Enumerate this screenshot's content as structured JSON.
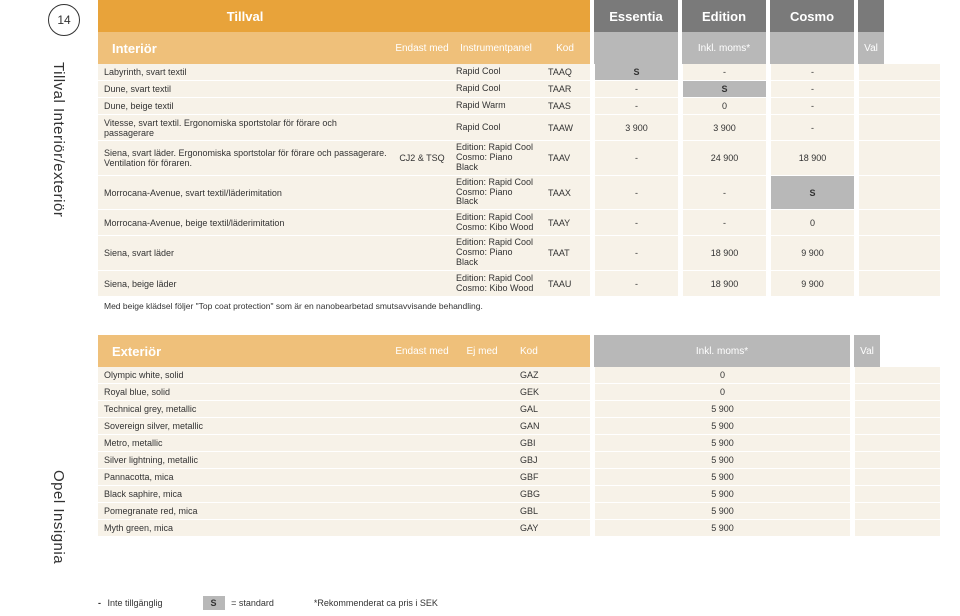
{
  "page_number": "14",
  "sidebar_top": "Tillval Interiör/exteriör",
  "sidebar_bottom": "Opel Insignia",
  "colors": {
    "orange_dark": "#e8a33a",
    "orange_light": "#efc07a",
    "grey_dark": "#7a7a7a",
    "grey_light": "#b8b8b8",
    "row_bg": "#f7f2e8"
  },
  "header": {
    "tillval": "Tillval",
    "trims": [
      "Essentia",
      "Edition",
      "Cosmo"
    ]
  },
  "subheader": {
    "interior": "Interiör",
    "endast_med": "Endast med",
    "instrumentpanel": "Instrumentpanel",
    "kod": "Kod",
    "inkl_moms": "Inkl. moms*",
    "val": "Val"
  },
  "interior_rows": [
    {
      "desc": "Labyrinth, svart textil",
      "em": "",
      "ip": "Rapid Cool",
      "kod": "TAAQ",
      "t": [
        "S",
        "-",
        "-"
      ],
      "tall": false
    },
    {
      "desc": "Dune, svart textil",
      "em": "",
      "ip": "Rapid Cool",
      "kod": "TAAR",
      "t": [
        "-",
        "S",
        "-"
      ],
      "tall": false
    },
    {
      "desc": "Dune, beige textil",
      "em": "",
      "ip": "Rapid Warm",
      "kod": "TAAS",
      "t": [
        "-",
        "0",
        "-"
      ],
      "tall": false
    },
    {
      "desc": "Vitesse, svart textil. Ergonomiska sportstolar för förare och passagerare",
      "em": "",
      "ip": "Rapid Cool",
      "kod": "TAAW",
      "t": [
        "3 900",
        "3 900",
        "-"
      ],
      "tall": true
    },
    {
      "desc": "Siena, svart läder. Ergonomiska sportstolar för förare och passagerare. Ventilation för föraren.",
      "em": "CJ2 & TSQ",
      "ip": "Edition: Rapid Cool\nCosmo: Piano Black",
      "kod": "TAAV",
      "t": [
        "-",
        "24 900",
        "18 900"
      ],
      "tall": true
    },
    {
      "desc": "Morrocana-Avenue, svart textil/läderimitation",
      "em": "",
      "ip": "Edition: Rapid Cool\nCosmo: Piano Black",
      "kod": "TAAX",
      "t": [
        "-",
        "-",
        "S"
      ],
      "tall": true
    },
    {
      "desc": "Morrocana-Avenue, beige textil/läderimitation",
      "em": "",
      "ip": "Edition: Rapid Cool\nCosmo: Kibo Wood",
      "kod": "TAAY",
      "t": [
        "-",
        "-",
        "0"
      ],
      "tall": true
    },
    {
      "desc": "Siena, svart läder",
      "em": "",
      "ip": "Edition: Rapid Cool\nCosmo: Piano Black",
      "kod": "TAAT",
      "t": [
        "-",
        "18 900",
        "9 900"
      ],
      "tall": true
    },
    {
      "desc": "Siena, beige läder",
      "em": "",
      "ip": "Edition: Rapid Cool\nCosmo: Kibo Wood",
      "kod": "TAAU",
      "t": [
        "-",
        "18 900",
        "9 900"
      ],
      "tall": true
    }
  ],
  "interior_note": "Med beige klädsel följer \"Top coat protection\" som är en nanobearbetad smutsavvisande behandling.",
  "exterior_header": {
    "title": "Exteriör",
    "endast_med": "Endast med",
    "ej_med": "Ej med",
    "kod": "Kod",
    "inkl_moms": "Inkl. moms*",
    "val": "Val"
  },
  "exterior_rows": [
    {
      "desc": "Olympic white, solid",
      "kod": "GAZ",
      "price": "0"
    },
    {
      "desc": "Royal blue, solid",
      "kod": "GEK",
      "price": "0"
    },
    {
      "desc": "Technical grey, metallic",
      "kod": "GAL",
      "price": "5 900"
    },
    {
      "desc": "Sovereign silver, metallic",
      "kod": "GAN",
      "price": "5 900"
    },
    {
      "desc": "Metro, metallic",
      "kod": "GBI",
      "price": "5 900"
    },
    {
      "desc": "Silver lightning, metallic",
      "kod": "GBJ",
      "price": "5 900"
    },
    {
      "desc": "Pannacotta, mica",
      "kod": "GBF",
      "price": "5 900"
    },
    {
      "desc": "Black saphire, mica",
      "kod": "GBG",
      "price": "5 900"
    },
    {
      "desc": "Pomegranate red, mica",
      "kod": "GBL",
      "price": "5 900"
    },
    {
      "desc": "Myth green, mica",
      "kod": "GAY",
      "price": "5 900"
    }
  ],
  "legend": {
    "dash": "-",
    "dash_label": "Inte tillgänglig",
    "s": "S",
    "s_label": "= standard",
    "rec": "*Rekommenderat ca pris i SEK"
  }
}
